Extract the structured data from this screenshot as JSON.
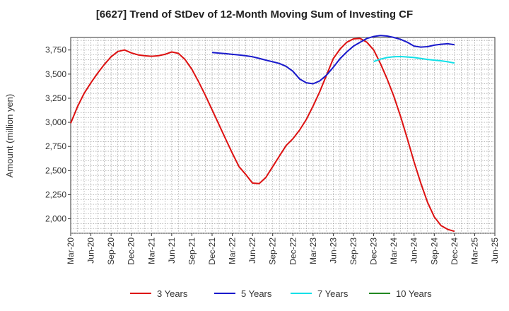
{
  "chart_data": {
    "type": "line",
    "title": "[6627]  Trend of StDev of 12-Month Moving Sum of Investing CF",
    "xlabel": "",
    "ylabel": "Amount (million yen)",
    "ylim": [
      1850,
      3880
    ],
    "yticks": [
      2000,
      2250,
      2500,
      2750,
      3000,
      3250,
      3500,
      3750
    ],
    "ytick_labels": [
      "2,000",
      "2,250",
      "2,500",
      "2,750",
      "3,000",
      "3,250",
      "3,500",
      "3,750"
    ],
    "xtick_labels": [
      "Mar-20",
      "Jun-20",
      "Sep-20",
      "Dec-20",
      "Mar-21",
      "Jun-21",
      "Sep-21",
      "Dec-21",
      "Mar-22",
      "Jun-22",
      "Sep-22",
      "Dec-22",
      "Mar-23",
      "Jun-23",
      "Sep-23",
      "Dec-23",
      "Mar-24",
      "Jun-24",
      "Sep-24",
      "Dec-24",
      "Mar-25",
      "Jun-25"
    ],
    "x_start": "Mar-20",
    "x_end": "Jun-25",
    "grid": true,
    "legend_position": "bottom",
    "series": [
      {
        "name": "3 Years",
        "color": "#dd1111",
        "x": [
          "Mar-20",
          "Apr-20",
          "May-20",
          "Jun-20",
          "Jul-20",
          "Aug-20",
          "Sep-20",
          "Oct-20",
          "Nov-20",
          "Dec-20",
          "Jan-21",
          "Feb-21",
          "Mar-21",
          "Apr-21",
          "May-21",
          "Jun-21",
          "Jul-21",
          "Aug-21",
          "Sep-21",
          "Oct-21",
          "Nov-21",
          "Dec-21",
          "Jan-22",
          "Feb-22",
          "Mar-22",
          "Apr-22",
          "May-22",
          "Jun-22",
          "Jul-22",
          "Aug-22",
          "Sep-22",
          "Oct-22",
          "Nov-22",
          "Dec-22",
          "Jan-23",
          "Feb-23",
          "Mar-23",
          "Apr-23",
          "May-23",
          "Jun-23",
          "Jul-23",
          "Aug-23",
          "Sep-23",
          "Oct-23",
          "Nov-23",
          "Dec-23",
          "Jan-24",
          "Feb-24",
          "Mar-24",
          "Apr-24",
          "May-24",
          "Jun-24",
          "Jul-24",
          "Aug-24",
          "Sep-24",
          "Oct-24",
          "Nov-24",
          "Dec-24"
        ],
        "values": [
          2990,
          3160,
          3300,
          3410,
          3510,
          3600,
          3680,
          3735,
          3750,
          3720,
          3700,
          3690,
          3685,
          3690,
          3705,
          3730,
          3715,
          3650,
          3550,
          3420,
          3280,
          3130,
          2980,
          2830,
          2680,
          2540,
          2460,
          2370,
          2365,
          2430,
          2540,
          2650,
          2760,
          2830,
          2920,
          3030,
          3170,
          3320,
          3490,
          3660,
          3760,
          3830,
          3865,
          3870,
          3830,
          3750,
          3610,
          3450,
          3270,
          3060,
          2830,
          2590,
          2370,
          2170,
          2020,
          1930,
          1890,
          1870
        ]
      },
      {
        "name": "5 Years",
        "color": "#1a1acc",
        "x": [
          "Dec-21",
          "Jan-22",
          "Feb-22",
          "Mar-22",
          "Apr-22",
          "May-22",
          "Jun-22",
          "Jul-22",
          "Aug-22",
          "Sep-22",
          "Oct-22",
          "Nov-22",
          "Dec-22",
          "Jan-23",
          "Feb-23",
          "Mar-23",
          "Apr-23",
          "May-23",
          "Jun-23",
          "Jul-23",
          "Aug-23",
          "Sep-23",
          "Oct-23",
          "Nov-23",
          "Dec-23",
          "Jan-24",
          "Feb-24",
          "Mar-24",
          "Apr-24",
          "May-24",
          "Jun-24",
          "Jul-24",
          "Aug-24",
          "Sep-24",
          "Oct-24",
          "Nov-24",
          "Dec-24"
        ],
        "values": [
          3725,
          3718,
          3712,
          3705,
          3698,
          3690,
          3680,
          3663,
          3645,
          3628,
          3610,
          3580,
          3530,
          3450,
          3410,
          3400,
          3430,
          3490,
          3570,
          3660,
          3730,
          3790,
          3830,
          3870,
          3890,
          3900,
          3895,
          3880,
          3860,
          3830,
          3790,
          3780,
          3785,
          3800,
          3810,
          3815,
          3805
        ]
      },
      {
        "name": "7 Years",
        "color": "#11e0e8",
        "x": [
          "Dec-23",
          "Jan-24",
          "Feb-24",
          "Mar-24",
          "Apr-24",
          "May-24",
          "Jun-24",
          "Jul-24",
          "Aug-24",
          "Sep-24",
          "Oct-24",
          "Nov-24",
          "Dec-24"
        ],
        "values": [
          3630,
          3655,
          3672,
          3680,
          3682,
          3678,
          3672,
          3662,
          3652,
          3645,
          3638,
          3628,
          3615
        ]
      },
      {
        "name": "10 Years",
        "color": "#228822",
        "x": [],
        "values": []
      }
    ]
  }
}
